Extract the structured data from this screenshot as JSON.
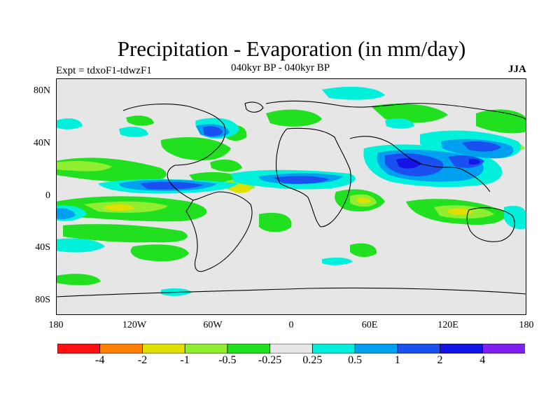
{
  "header": {
    "title": "Precipitation - Evaporation (in mm/day)",
    "expt": "Expt = tdxoF1-tdwzF1",
    "subtitle": "040kyr BP - 040kyr BP",
    "season": "JJA"
  },
  "axes": {
    "lat_labels": [
      "80N",
      "40N",
      "0",
      "40S",
      "80S"
    ],
    "lon_labels": [
      "180",
      "120W",
      "60W",
      "0",
      "60E",
      "120E",
      "180"
    ]
  },
  "colorbar": {
    "colors": [
      "#ff1010",
      "#ff8000",
      "#e0e000",
      "#90ee30",
      "#20e020",
      "#e6e6e6",
      "#00f0dc",
      "#00a0f0",
      "#1a50f0",
      "#1414e6",
      "#8020f0"
    ],
    "labels": [
      "-4",
      "-2",
      "-1",
      "-0.5",
      "-0.25",
      "0.25",
      "0.5",
      "1",
      "2",
      "4"
    ]
  },
  "legend_bins": [
    {
      "color": "#e6e6e6"
    },
    {
      "color": "#20e020"
    },
    {
      "color": "#90ee30"
    },
    {
      "color": "#e0e000"
    },
    {
      "color": "#00f0dc"
    },
    {
      "color": "#00a0f0"
    },
    {
      "color": "#1a50f0"
    }
  ]
}
